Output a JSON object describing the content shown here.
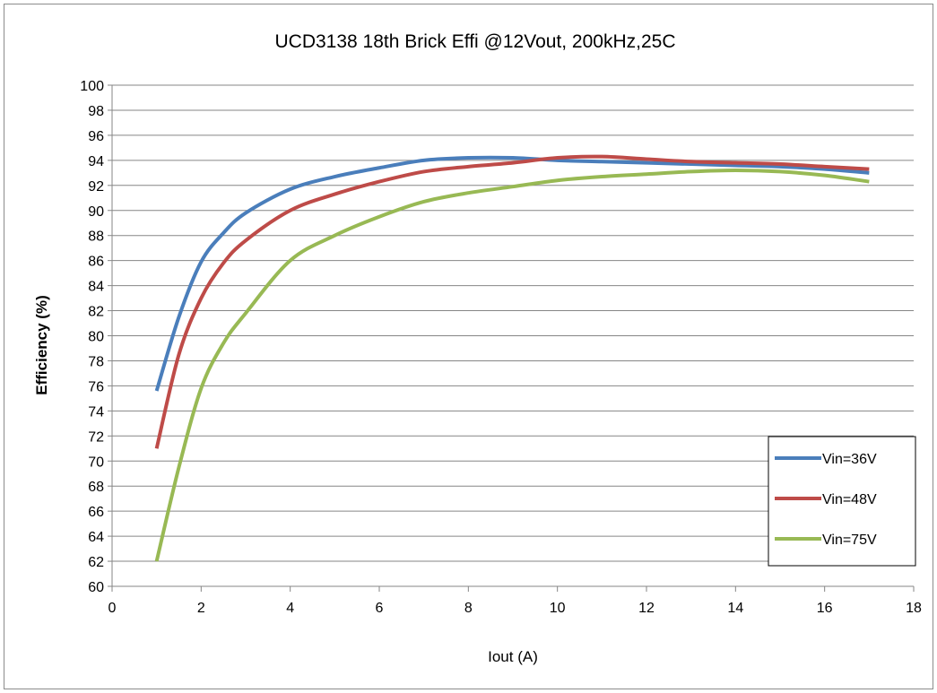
{
  "chart_data": {
    "type": "line",
    "title": "UCD3138 18th Brick Effi @12Vout, 200kHz,25C",
    "xlabel": "Iout (A)",
    "ylabel": "Efficiency (%)",
    "xlim": [
      0,
      18
    ],
    "ylim": [
      60,
      100
    ],
    "xticks": [
      0,
      2,
      4,
      6,
      8,
      10,
      12,
      14,
      16,
      18
    ],
    "yticks": [
      60,
      62,
      64,
      66,
      68,
      70,
      72,
      74,
      76,
      78,
      80,
      82,
      84,
      86,
      88,
      90,
      92,
      94,
      96,
      98,
      100
    ],
    "grid": "horizontal",
    "legend_position": "bottom-right",
    "series": [
      {
        "name": "Vin=36V",
        "color": "#4a7ebb",
        "x": [
          1,
          1.5,
          2,
          2.5,
          3,
          4,
          5,
          6,
          7,
          8,
          9,
          10,
          11,
          12,
          13,
          14,
          15,
          16,
          17
        ],
        "y": [
          75.6,
          81.5,
          85.9,
          88.2,
          89.8,
          91.7,
          92.7,
          93.4,
          94.0,
          94.2,
          94.2,
          94.0,
          93.9,
          93.8,
          93.7,
          93.6,
          93.5,
          93.3,
          93.0
        ]
      },
      {
        "name": "Vin=48V",
        "color": "#be4b48",
        "x": [
          1,
          1.5,
          2,
          2.5,
          3,
          4,
          5,
          6,
          7,
          8,
          9,
          10,
          11,
          12,
          13,
          14,
          15,
          16,
          17
        ],
        "y": [
          71.0,
          78.5,
          83.0,
          85.8,
          87.6,
          90.0,
          91.3,
          92.3,
          93.1,
          93.5,
          93.8,
          94.2,
          94.3,
          94.1,
          93.9,
          93.8,
          93.7,
          93.5,
          93.3
        ]
      },
      {
        "name": "Vin=75V",
        "color": "#98b954",
        "x": [
          1,
          1.5,
          2,
          2.5,
          3,
          4,
          5,
          6,
          7,
          8,
          9,
          10,
          11,
          12,
          13,
          14,
          15,
          16,
          17
        ],
        "y": [
          62.0,
          69.5,
          75.8,
          79.4,
          81.8,
          86.0,
          88.0,
          89.5,
          90.7,
          91.4,
          91.9,
          92.4,
          92.7,
          92.9,
          93.1,
          93.2,
          93.1,
          92.8,
          92.3
        ]
      }
    ]
  }
}
